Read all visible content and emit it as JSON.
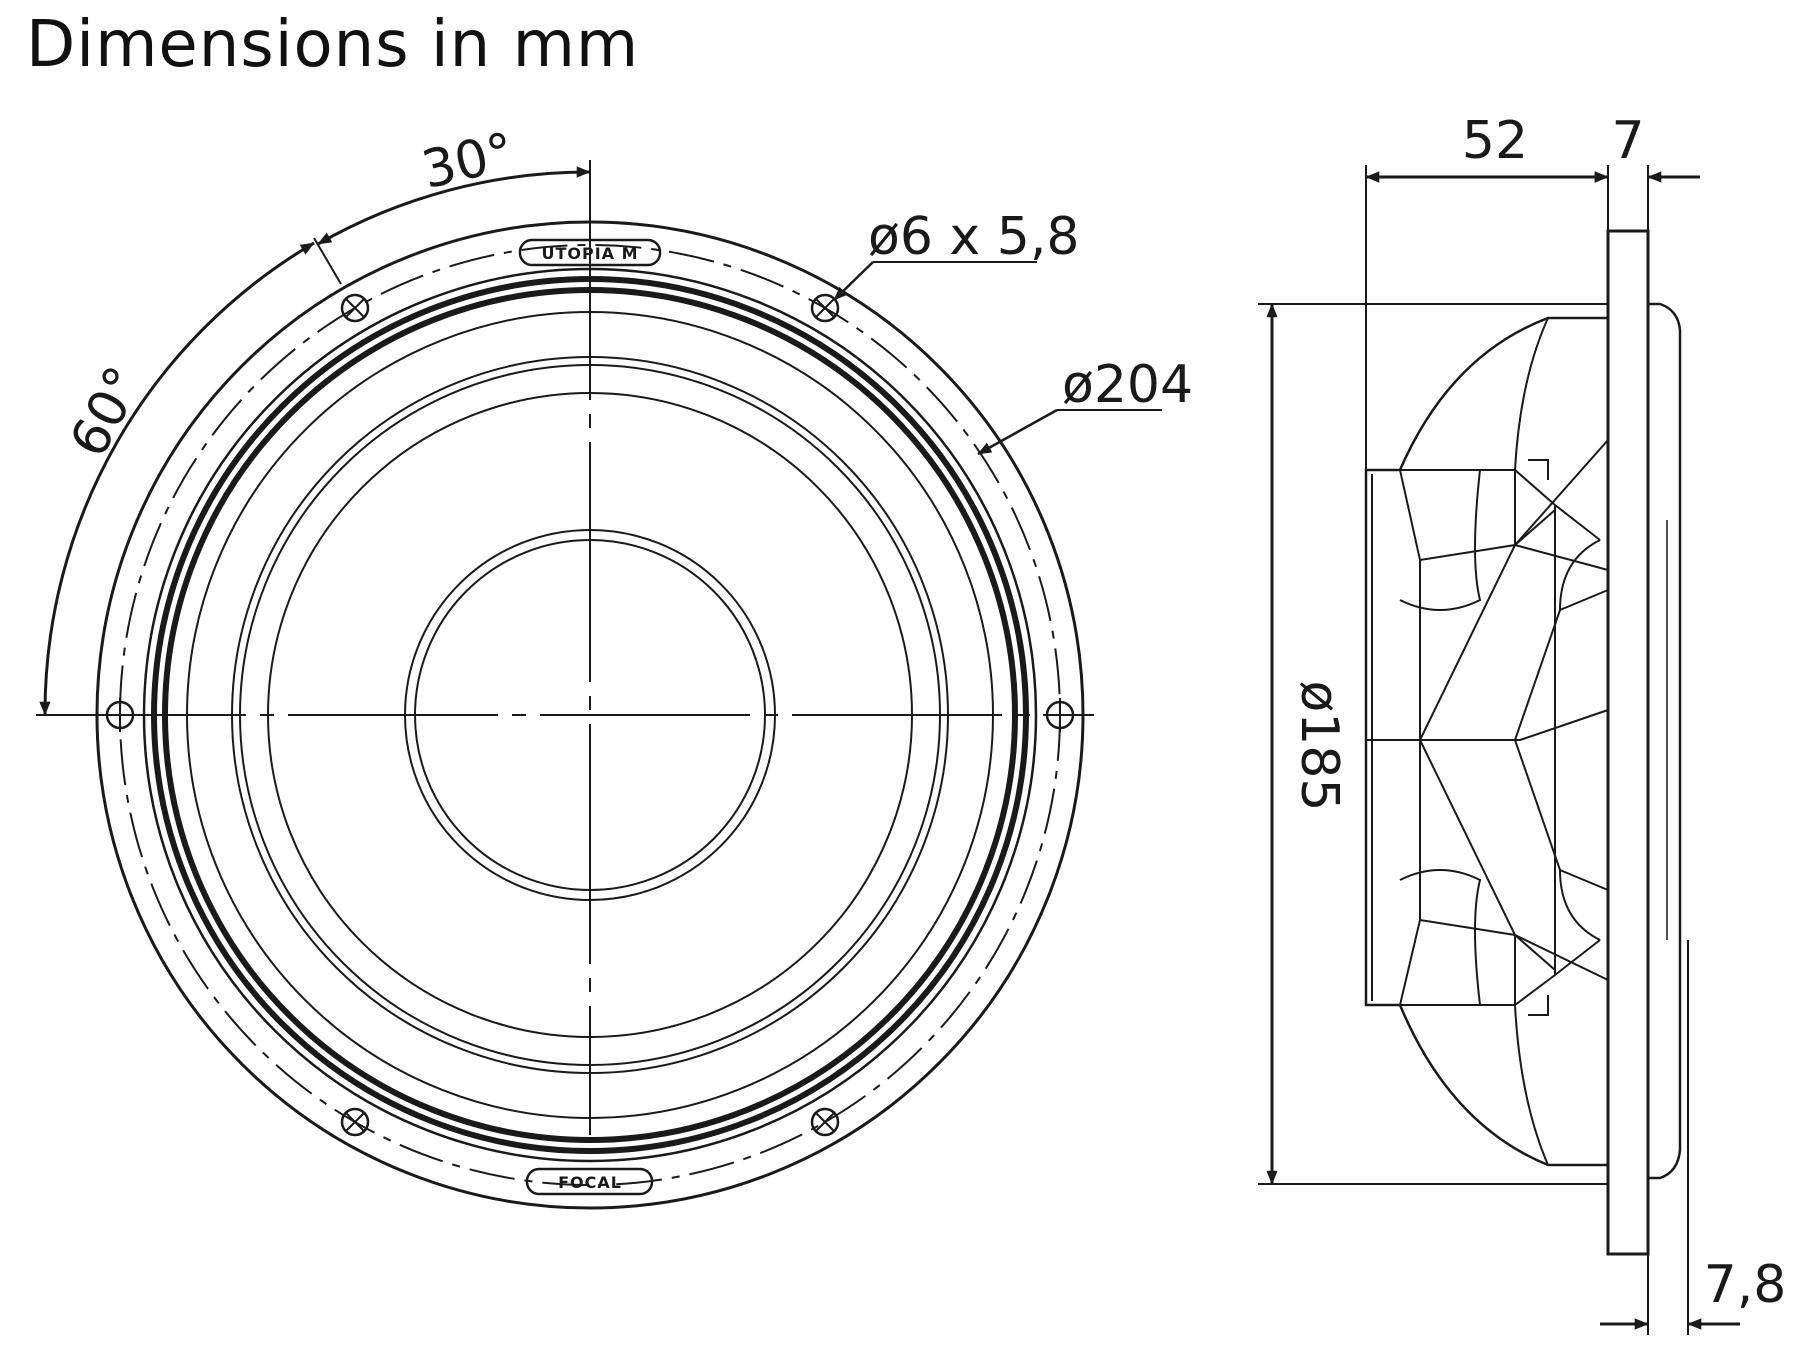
{
  "title": "Dimensions in mm",
  "front_view": {
    "angle_top": "30°",
    "angle_left": "60°",
    "hole_spec": "ø6 x 5,8",
    "outer_diameter": "ø204",
    "badge_top": "UTOPIA M",
    "badge_bottom": "FOCAL"
  },
  "side_view": {
    "depth": "52",
    "flange_thickness": "7",
    "cutout_diameter": "ø185",
    "offset": "7,8"
  }
}
